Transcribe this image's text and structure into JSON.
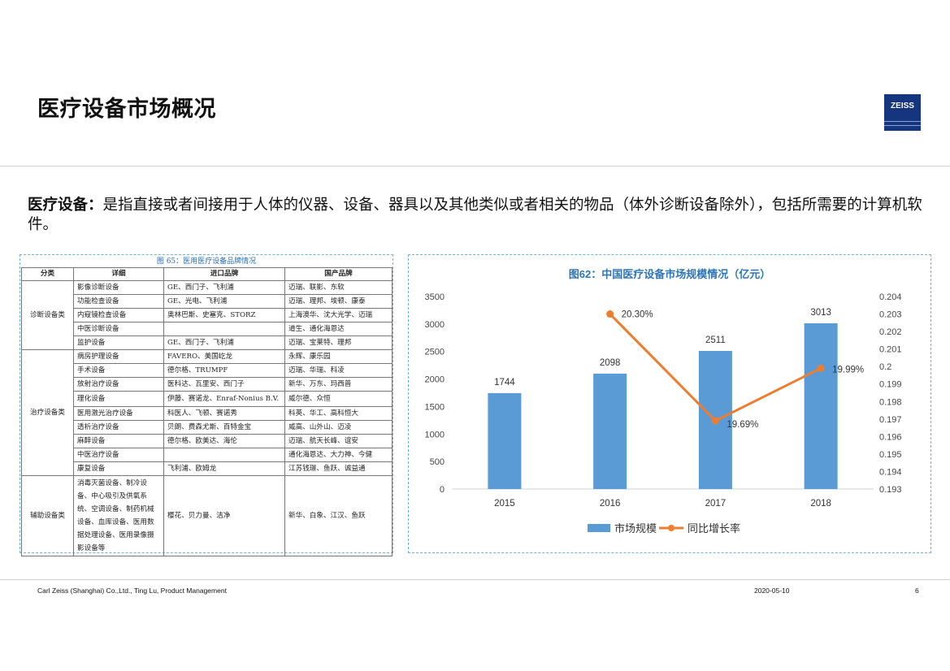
{
  "page": {
    "title": "医疗设备市场概况",
    "logo_text": "ZEISS",
    "intro_term": "医疗设备：",
    "intro_text": "是指直接或者间接用于人体的仪器、设备、器具以及其他类似或者相关的物品（体外诊断设备除外），包括所需要的计算机软件。"
  },
  "table": {
    "caption": "图 65：医用医疗设备品牌情况",
    "headers": [
      "分类",
      "详细",
      "进口品牌",
      "国产品牌"
    ],
    "groups": [
      {
        "category": "诊断设备类",
        "rows": [
          [
            "影像诊断设备",
            "GE、西门子、飞利浦",
            "迈瑞、联影、东软"
          ],
          [
            "功能检查设备",
            "GE、光电、飞利浦",
            "迈瑞、理邦、埃顿、康泰"
          ],
          [
            "内窥镜检查设备",
            "奥林巴斯、史塞克、STORZ",
            "上海澳华、沈大光学、迈瑞"
          ],
          [
            "中医诊断设备",
            "",
            "道生、通化海恩达"
          ],
          [
            "监护设备",
            "GE、西门子、飞利浦",
            "迈瑞、宝莱特、理邦"
          ]
        ]
      },
      {
        "category": "治疗设备类",
        "rows": [
          [
            "病房护理设备",
            "FAVERO、美国屹龙",
            "永辉、康乐园"
          ],
          [
            "手术设备",
            "德尔格、TRUMPF",
            "迈瑞、华瑞、科凌"
          ],
          [
            "放射治疗设备",
            "医科达、瓦里安、西门子",
            "新华、万东、玛西普"
          ],
          [
            "理化设备",
            "伊藤、赛诺龙、Enraf-Nonius B.V.",
            "威尔德、众恒"
          ],
          [
            "医用激光治疗设备",
            "科医人、飞顿、赛诺秀",
            "科英、华工、高科恒大"
          ],
          [
            "透析治疗设备",
            "贝朗、费森尤斯、百特金宝",
            "威高、山外山、迈凌"
          ],
          [
            "麻醉设备",
            "德尔格、欧美达、海伦",
            "迈瑞、航天长峰、谊安"
          ],
          [
            "中医治疗设备",
            "",
            "通化海恩达、大力神、今健"
          ],
          [
            "康复设备",
            "飞利浦、欧姆龙",
            "江苏钱璟、鱼跃、诚益通"
          ]
        ]
      },
      {
        "category": "辅助设备类",
        "rows": [
          [
            "消毒灭菌设备、制冷设备、中心吸引及供氧系统、空调设备、制药机械设备、血库设备、医用数据处理设备、医用录像摄影设备等",
            "樱花、贝力曼、洁净",
            "新华、白象、江汉、鱼跃"
          ]
        ]
      }
    ]
  },
  "chart_data": {
    "type": "bar",
    "title": "图62：中国医疗设备市场规模情况（亿元）",
    "categories": [
      "2015",
      "2016",
      "2017",
      "2018"
    ],
    "series": [
      {
        "name": "市场规模",
        "type": "bar",
        "axis": "left",
        "values": [
          1744,
          2098,
          2511,
          3013
        ],
        "labels": [
          "1744",
          "2098",
          "2511",
          "3013"
        ],
        "color": "#5b9bd5"
      },
      {
        "name": "同比增长率",
        "type": "line",
        "axis": "right",
        "values": [
          null,
          0.203,
          0.1969,
          0.1999
        ],
        "labels": [
          "",
          "20.30%",
          "19.69%",
          "19.99%"
        ],
        "color": "#ed7d31"
      }
    ],
    "y_left": {
      "ylim": [
        0,
        3500
      ],
      "ticks": [
        "0",
        "500",
        "1000",
        "1500",
        "2000",
        "2500",
        "3000",
        "3500"
      ]
    },
    "y_right": {
      "ylim": [
        0.193,
        0.204
      ],
      "ticks": [
        "0.193",
        "0.194",
        "0.195",
        "0.196",
        "0.197",
        "0.198",
        "0.199",
        "0.2",
        "0.201",
        "0.202",
        "0.203",
        "0.204"
      ]
    },
    "legend_position": "bottom",
    "grid": false
  },
  "footer": {
    "left": "Carl Zeiss (Shanghai) Co.,Ltd., Ting Lu, Product Management",
    "date": "2020-05-10",
    "page": "6"
  },
  "colors": {
    "accent": "#15357f",
    "bar": "#5b9bd5",
    "line": "#ed7d31",
    "panel_border": "#6fb3e0"
  }
}
